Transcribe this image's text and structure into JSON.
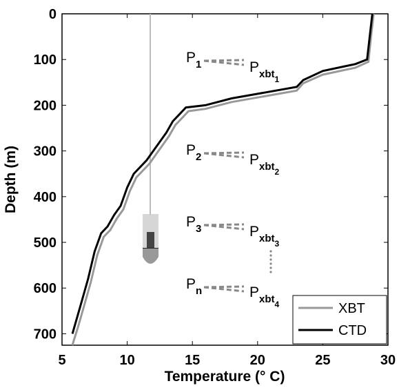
{
  "chart_data": {
    "type": "line",
    "x_label": "Temperature (° C)",
    "y_label": "Depth (m)",
    "xlim": [
      5,
      30
    ],
    "xticks": [
      5,
      10,
      15,
      20,
      25,
      30
    ],
    "ylim": [
      0,
      725
    ],
    "yticks": [
      0,
      100,
      200,
      300,
      400,
      500,
      600,
      700
    ],
    "y_inverted": true,
    "legend": "lower right",
    "series": [
      {
        "name": "XBT",
        "color": "#999999",
        "x": [
          28.9,
          28.7,
          28.5,
          27.5,
          25,
          23.5,
          23,
          20,
          18,
          16,
          14.7,
          14.2,
          13.7,
          13.2,
          12.2,
          11.7,
          10.7,
          10.2,
          9.7,
          9.2,
          8.7,
          8.2,
          7.7,
          7.2,
          6.7,
          6.2,
          5.9,
          5.8
        ],
        "values": [
          0,
          50,
          105,
          118,
          133,
          152,
          168,
          183,
          193,
          208,
          213,
          228,
          243,
          268,
          308,
          328,
          358,
          388,
          428,
          448,
          473,
          488,
          528,
          588,
          638,
          688,
          715,
          725
        ]
      },
      {
        "name": "CTD",
        "color": "#000000",
        "x": [
          28.8,
          28.6,
          28.4,
          27.5,
          25,
          23.5,
          23,
          20,
          18,
          16,
          14.5,
          14,
          13.5,
          13,
          12,
          11.5,
          10.5,
          10,
          9.5,
          9,
          8.5,
          8,
          7.5,
          7,
          6.5,
          6,
          5.8
        ],
        "values": [
          0,
          50,
          100,
          110,
          125,
          145,
          160,
          175,
          185,
          200,
          205,
          220,
          235,
          260,
          300,
          320,
          350,
          380,
          420,
          440,
          465,
          480,
          520,
          580,
          630,
          680,
          700
        ]
      }
    ],
    "annotations": [
      {
        "main": "P",
        "sub": "1"
      },
      {
        "main": "P",
        "sub": "xbt",
        "subsub": "1"
      },
      {
        "main": "P",
        "sub": "2"
      },
      {
        "main": "P",
        "sub": "xbt",
        "subsub": "2"
      },
      {
        "main": "P",
        "sub": "3"
      },
      {
        "main": "P",
        "sub": "xbt",
        "subsub": "3"
      },
      {
        "main": "P",
        "sub": "n"
      },
      {
        "main": "P",
        "sub": "xbt",
        "subsub": "4"
      }
    ]
  }
}
